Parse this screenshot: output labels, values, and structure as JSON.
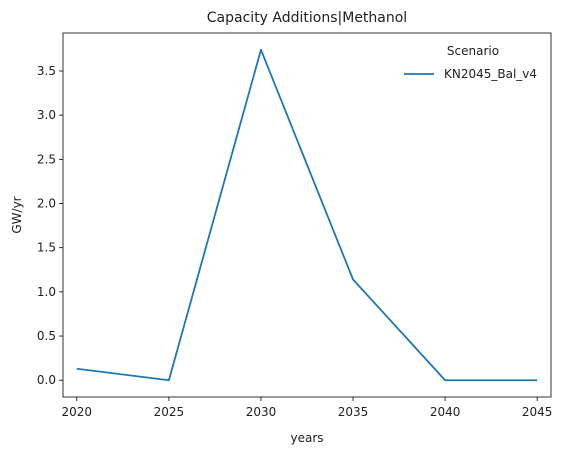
{
  "chart_data": {
    "type": "line",
    "title": "Capacity Additions|Methanol",
    "xlabel": "years",
    "ylabel": "GW/yr",
    "x": [
      2020,
      2025,
      2030,
      2035,
      2040,
      2045
    ],
    "xticks": [
      "2020",
      "2025",
      "2030",
      "2035",
      "2040",
      "2045"
    ],
    "yticks": [
      "0.0",
      "0.5",
      "1.0",
      "1.5",
      "2.0",
      "2.5",
      "3.0",
      "3.5"
    ],
    "xlim": [
      2019.25,
      2045.75
    ],
    "ylim": [
      -0.19,
      3.93
    ],
    "grid": false,
    "legend": {
      "title": "Scenario",
      "placement": "top-right"
    },
    "series": [
      {
        "name": "KN2045_Bal_v4",
        "color": "#1f77b4",
        "values": [
          0.13,
          0.0,
          3.74,
          1.14,
          0.0,
          0.0
        ]
      }
    ]
  }
}
